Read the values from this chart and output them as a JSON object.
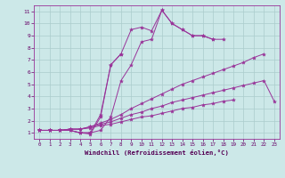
{
  "xlabel": "Windchill (Refroidissement éolien,°C)",
  "background_color": "#cce8e8",
  "grid_color": "#aacccc",
  "line_color": "#993399",
  "xlim": [
    -0.5,
    23.5
  ],
  "ylim": [
    0.5,
    11.5
  ],
  "xticks": [
    0,
    1,
    2,
    3,
    4,
    5,
    6,
    7,
    8,
    9,
    10,
    11,
    12,
    13,
    14,
    15,
    16,
    17,
    18,
    19,
    20,
    21,
    22,
    23
  ],
  "yticks": [
    1,
    2,
    3,
    4,
    5,
    6,
    7,
    8,
    9,
    10,
    11
  ],
  "series": [
    [
      1.2,
      1.2,
      1.2,
      1.2,
      1.0,
      1.0,
      2.5,
      6.6,
      7.5,
      null,
      null,
      null,
      null,
      null,
      null,
      null,
      null,
      null,
      null,
      null,
      null,
      null,
      null,
      null
    ],
    [
      1.2,
      1.2,
      1.2,
      1.2,
      1.0,
      1.0,
      1.2,
      2.3,
      5.3,
      6.6,
      8.5,
      8.7,
      11.1,
      10.0,
      9.5,
      9.0,
      9.0,
      8.7,
      null,
      null,
      null,
      null,
      null,
      null
    ],
    [
      1.2,
      1.2,
      1.2,
      1.2,
      1.0,
      0.9,
      2.3,
      6.6,
      7.5,
      9.5,
      9.7,
      9.4,
      11.1,
      10.0,
      9.5,
      9.0,
      9.0,
      8.7,
      8.7,
      null,
      null,
      null,
      null,
      null
    ],
    [
      1.2,
      1.2,
      1.2,
      1.3,
      1.3,
      1.5,
      1.8,
      2.1,
      2.5,
      3.0,
      3.4,
      3.8,
      4.2,
      4.6,
      5.0,
      5.3,
      5.6,
      5.9,
      6.2,
      6.5,
      6.8,
      7.2,
      7.5,
      null
    ],
    [
      1.2,
      1.2,
      1.2,
      1.3,
      1.3,
      1.5,
      1.7,
      1.9,
      2.2,
      2.5,
      2.7,
      3.0,
      3.2,
      3.5,
      3.7,
      3.9,
      4.1,
      4.3,
      4.5,
      4.7,
      4.9,
      5.1,
      5.3,
      3.6
    ],
    [
      1.2,
      1.2,
      1.2,
      1.3,
      1.3,
      1.4,
      1.6,
      1.7,
      1.9,
      2.1,
      2.3,
      2.4,
      2.6,
      2.8,
      3.0,
      3.1,
      3.3,
      3.4,
      3.6,
      3.7,
      null,
      null,
      null,
      null
    ]
  ]
}
